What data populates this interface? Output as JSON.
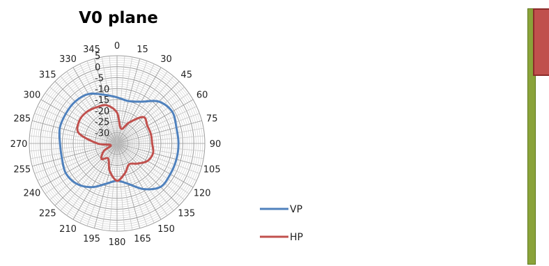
{
  "chart_data": {
    "type": "polar-line",
    "title": "V0 plane",
    "angle_unit": "degrees",
    "angular_ticks": [
      "0",
      "15",
      "30",
      "45",
      "60",
      "75",
      "90",
      "105",
      "120",
      "135",
      "150",
      "165",
      "180",
      "195",
      "210",
      "225",
      "240",
      "255",
      "270",
      "285",
      "300",
      "315",
      "330",
      "345"
    ],
    "radial_ticks": [
      "5",
      "0",
      "-5",
      "-10",
      "-15",
      "-20",
      "-25",
      "-30"
    ],
    "rlim": [
      -35,
      5
    ],
    "angles": [
      0,
      15,
      30,
      45,
      60,
      75,
      90,
      105,
      120,
      135,
      150,
      165,
      180,
      195,
      210,
      225,
      240,
      255,
      270,
      285,
      300,
      315,
      330,
      345
    ],
    "series": [
      {
        "name": "VP",
        "color": "#4f81bd",
        "values": [
          -14,
          -15,
          -13,
          -8,
          -6,
          -7,
          -7,
          -7,
          -7,
          -7,
          -11,
          -16,
          -18,
          -16,
          -12,
          -9,
          -8,
          -9,
          -9,
          -8,
          -8,
          -8,
          -9,
          -12
        ]
      },
      {
        "name": "HP",
        "color": "#c0504d",
        "values": [
          -21,
          -28,
          -24,
          -18,
          -19,
          -19,
          -19,
          -18,
          -19,
          -22,
          -24,
          -21,
          -18,
          -22,
          -27,
          -25,
          -28,
          -32,
          -26,
          -17,
          -15,
          -15,
          -16,
          -17
        ]
      }
    ],
    "legend": {
      "position": "right",
      "entries": [
        "VP",
        "HP"
      ]
    },
    "grid": true
  },
  "decor": {
    "bar_color": "#8aa33a",
    "block_color": "#c0504d"
  }
}
